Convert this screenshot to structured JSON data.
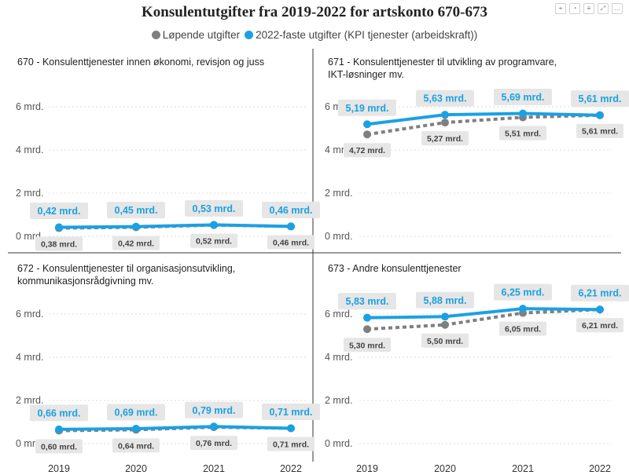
{
  "title": "Konsulentutgifter fra 2019-2022 for artskonto 670-673",
  "toolbar_icons": [
    "pin-icon",
    "bell-icon",
    "filter-icon",
    "expand-icon",
    "more-icon"
  ],
  "legend": [
    {
      "name": "Løpende utgifter",
      "color": "#7f7f7f"
    },
    {
      "name": "2022-faste utgifter (KPI tjenester (arbeidskraft))",
      "color": "#1ba1e2"
    }
  ],
  "chart_data": {
    "type": "line",
    "x": [
      "2019",
      "2020",
      "2021",
      "2022"
    ],
    "ylim": [
      0,
      7
    ],
    "y_ticks": [
      0,
      2,
      4,
      6
    ],
    "y_tick_labels": [
      "0 mrd.",
      "2 mrd.",
      "4 mrd.",
      "6 mrd."
    ],
    "grid": true,
    "legend_position": "top-center",
    "panels": [
      {
        "title": "670 - Konsulenttjenester innen økonomi, revisjon og juss",
        "series": [
          {
            "name": "Løpende utgifter",
            "values": [
              0.38,
              0.42,
              0.52,
              0.46
            ],
            "labels": [
              "0,38 mrd.",
              "0,42 mrd.",
              "0,52 mrd.",
              "0,46 mrd."
            ]
          },
          {
            "name": "2022-faste utgifter (KPI tjenester (arbeidskraft))",
            "values": [
              0.42,
              0.45,
              0.53,
              0.46
            ],
            "labels": [
              "0,42 mrd.",
              "0,45 mrd.",
              "0,53 mrd.",
              "0,46 mrd."
            ]
          }
        ]
      },
      {
        "title": "671 - Konsulenttjenester til utvikling av programvare, IKT-løsninger mv.",
        "series": [
          {
            "name": "Løpende utgifter",
            "values": [
              4.72,
              5.27,
              5.51,
              5.61
            ],
            "labels": [
              "4,72 mrd.",
              "5,27 mrd.",
              "5,51 mrd.",
              "5,61 mrd."
            ]
          },
          {
            "name": "2022-faste utgifter (KPI tjenester (arbeidskraft))",
            "values": [
              5.19,
              5.63,
              5.69,
              5.61
            ],
            "labels": [
              "5,19 mrd.",
              "5,63 mrd.",
              "5,69 mrd.",
              "5,61 mrd."
            ]
          }
        ]
      },
      {
        "title": "672 - Konsulenttjenester til organisasjonsutvikling, kommunikasjonsrådgivning mv.",
        "series": [
          {
            "name": "Løpende utgifter",
            "values": [
              0.6,
              0.64,
              0.76,
              0.71
            ],
            "labels": [
              "0,60 mrd.",
              "0,64 mrd.",
              "0,76 mrd.",
              "0,71 mrd."
            ]
          },
          {
            "name": "2022-faste utgifter (KPI tjenester (arbeidskraft))",
            "values": [
              0.66,
              0.69,
              0.79,
              0.71
            ],
            "labels": [
              "0,66 mrd.",
              "0,69 mrd.",
              "0,79 mrd.",
              "0,71 mrd."
            ]
          }
        ]
      },
      {
        "title": "673 - Andre konsulenttjenester",
        "series": [
          {
            "name": "Løpende utgifter",
            "values": [
              5.3,
              5.5,
              6.05,
              6.21
            ],
            "labels": [
              "5,30 mrd.",
              "5,50 mrd.",
              "6,05 mrd.",
              "6,21 mrd."
            ]
          },
          {
            "name": "2022-faste utgifter (KPI tjenester (arbeidskraft))",
            "values": [
              5.83,
              5.88,
              6.25,
              6.21
            ],
            "labels": [
              "5,83 mrd.",
              "5,88 mrd.",
              "6,25 mrd.",
              "6,21 mrd."
            ]
          }
        ]
      }
    ]
  }
}
